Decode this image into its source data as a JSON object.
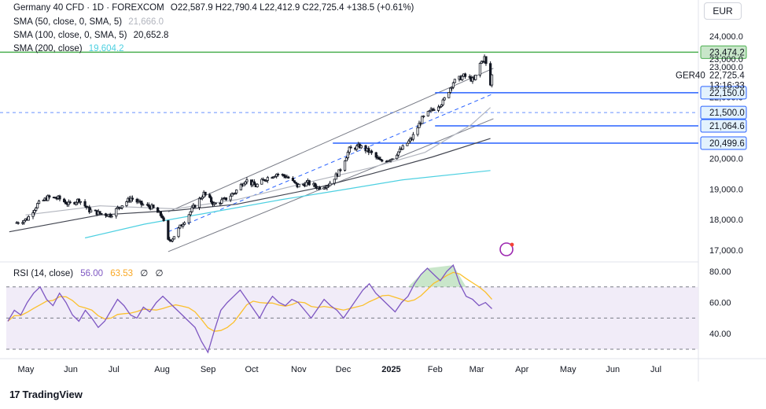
{
  "legend": {
    "title": "Germany 40 CFD · 1D · FOREXCOM",
    "ohlc": "O22,587.9  H22,790.4  L22,412.9  C22,725.4  +138.5 (+0.61%)",
    "sma50_label": "SMA (50, close, 0, SMA, 5)",
    "sma50_value": "21,666.0",
    "sma100_label": "SMA (100, close, 0, SMA, 5)",
    "sma100_value": "20,652.8",
    "sma200_label": "SMA (200, close)",
    "sma200_value": "19,604.2"
  },
  "currency": "EUR",
  "rsi_legend": {
    "label": "RSI (14, close)",
    "rsi_value": "56.00",
    "ma_value": "63.53",
    "extra1": "∅",
    "extra2": "∅"
  },
  "brand": "TradingView",
  "symbol_label": "GER40",
  "countdown": "13:16:33",
  "colors": {
    "up": "#131722",
    "sma50": "#b2b5be",
    "sma100": "#434651",
    "sma200": "#4dd0e1",
    "rsi": "#7e57c2",
    "rsi_ma": "#fbc02d",
    "level": "#2962ff",
    "top_level": "#4caf50",
    "channel": "#787b86"
  },
  "chart_data": [
    {
      "type": "candlestick",
      "title": "Germany 40 CFD · 1D · FOREXCOM",
      "x_ticks": [
        "May",
        "Jun",
        "Jul",
        "Aug",
        "Sep",
        "Oct",
        "Nov",
        "Dec",
        "2025",
        "Feb",
        "Mar",
        "Apr",
        "May",
        "Jun",
        "Jul"
      ],
      "y_ticks": [
        "17,000.0",
        "18,000.0",
        "19,000.0",
        "20,000.0",
        "21,000.0",
        "22,000.0",
        "23,000.0",
        "24,000.0"
      ],
      "ylim": [
        16800,
        24300
      ],
      "close_path": [
        [
          "2024-04-25",
          17900
        ],
        [
          "2024-05-02",
          18020
        ],
        [
          "2024-05-09",
          18500
        ],
        [
          "2024-05-16",
          18720
        ],
        [
          "2024-05-23",
          18700
        ],
        [
          "2024-05-30",
          18500
        ],
        [
          "2024-06-06",
          18650
        ],
        [
          "2024-06-13",
          18300
        ],
        [
          "2024-06-20",
          18200
        ],
        [
          "2024-06-27",
          18150
        ],
        [
          "2024-07-04",
          18450
        ],
        [
          "2024-07-11",
          18700
        ],
        [
          "2024-07-18",
          18500
        ],
        [
          "2024-07-25",
          18400
        ],
        [
          "2024-08-01",
          18100
        ],
        [
          "2024-08-05",
          17300
        ],
        [
          "2024-08-08",
          17400
        ],
        [
          "2024-08-15",
          17900
        ],
        [
          "2024-08-22",
          18400
        ],
        [
          "2024-08-29",
          18850
        ],
        [
          "2024-09-05",
          18500
        ],
        [
          "2024-09-12",
          18650
        ],
        [
          "2024-09-19",
          18900
        ],
        [
          "2024-09-26",
          19300
        ],
        [
          "2024-10-03",
          19100
        ],
        [
          "2024-10-10",
          19350
        ],
        [
          "2024-10-17",
          19500
        ],
        [
          "2024-10-24",
          19400
        ],
        [
          "2024-10-31",
          19100
        ],
        [
          "2024-11-07",
          19200
        ],
        [
          "2024-11-14",
          19050
        ],
        [
          "2024-11-21",
          19150
        ],
        [
          "2024-11-28",
          19550
        ],
        [
          "2024-12-05",
          20300
        ],
        [
          "2024-12-12",
          20400
        ],
        [
          "2024-12-19",
          20200
        ],
        [
          "2024-12-26",
          19900
        ],
        [
          "2025-01-02",
          20000
        ],
        [
          "2025-01-09",
          20300
        ],
        [
          "2025-01-16",
          20650
        ],
        [
          "2025-01-23",
          21300
        ],
        [
          "2025-01-30",
          21600
        ],
        [
          "2025-02-06",
          21850
        ],
        [
          "2025-02-13",
          22500
        ],
        [
          "2025-02-20",
          22700
        ],
        [
          "2025-02-27",
          22550
        ],
        [
          "2025-03-03",
          23100
        ],
        [
          "2025-03-06",
          23300
        ],
        [
          "2025-03-10",
          22400
        ],
        [
          "2025-03-11",
          22725.4
        ]
      ],
      "levels": [
        {
          "price": 23474.2,
          "label": "23,474.2",
          "color": "#4caf50"
        },
        {
          "price": 22150.0,
          "label": "22,150.0",
          "color": "#2962ff"
        },
        {
          "price": 21500.0,
          "label": "21,500.0",
          "color": "#2962ff",
          "dashed": true
        },
        {
          "price": 21064.6,
          "label": "21,064.6",
          "color": "#2962ff"
        },
        {
          "price": 20499.6,
          "label": "20,499.6",
          "color": "#2962ff"
        }
      ],
      "last_price": {
        "price": 22725.4,
        "label": "22,725.4"
      },
      "series": [
        {
          "name": "SMA (50, close, 0, SMA, 5)",
          "last": 21666.0
        },
        {
          "name": "SMA (100, close, 0, SMA, 5)",
          "last": 20652.8
        },
        {
          "name": "SMA (200, close)",
          "last": 19604.2
        }
      ]
    },
    {
      "type": "line",
      "title": "RSI (14, close)",
      "y_ticks": [
        "40.00",
        "60.00",
        "80.00"
      ],
      "ylim": [
        25,
        86
      ],
      "overbought": 70,
      "oversold": 30,
      "midline": 50,
      "series": [
        {
          "name": "RSI",
          "last": 56.0,
          "values": [
            48,
            55,
            52,
            60,
            66,
            70,
            62,
            58,
            66,
            60,
            52,
            48,
            55,
            50,
            44,
            48,
            55,
            62,
            58,
            52,
            50,
            57,
            54,
            60,
            64,
            60,
            56,
            52,
            48,
            44,
            35,
            28,
            42,
            55,
            60,
            64,
            68,
            62,
            56,
            50,
            58,
            64,
            60,
            58,
            62,
            60,
            55,
            50,
            56,
            62,
            58,
            55,
            50,
            56,
            62,
            68,
            72,
            66,
            62,
            58,
            54,
            60,
            64,
            72,
            78,
            82,
            78,
            74,
            80,
            84,
            72,
            64,
            62,
            58,
            60,
            56
          ]
        },
        {
          "name": "RSI MA",
          "last": 63.53
        }
      ]
    }
  ]
}
